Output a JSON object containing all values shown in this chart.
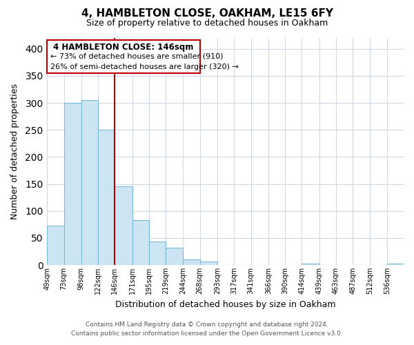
{
  "title": "4, HAMBLETON CLOSE, OAKHAM, LE15 6FY",
  "subtitle": "Size of property relative to detached houses in Oakham",
  "xlabel": "Distribution of detached houses by size in Oakham",
  "ylabel": "Number of detached properties",
  "footer_line1": "Contains HM Land Registry data © Crown copyright and database right 2024.",
  "footer_line2": "Contains public sector information licensed under the Open Government Licence v3.0.",
  "annotation_title": "4 HAMBLETON CLOSE: 146sqm",
  "annotation_line2": "← 73% of detached houses are smaller (910)",
  "annotation_line3": "26% of semi-detached houses are larger (320) →",
  "bar_color": "#cce5f3",
  "bar_edge_color": "#7ab8d9",
  "marker_line_color": "#bb0000",
  "marker_value": 146,
  "xlabels": [
    "49sqm",
    "73sqm",
    "98sqm",
    "122sqm",
    "146sqm",
    "171sqm",
    "195sqm",
    "219sqm",
    "244sqm",
    "268sqm",
    "293sqm",
    "317sqm",
    "341sqm",
    "366sqm",
    "390sqm",
    "414sqm",
    "439sqm",
    "463sqm",
    "487sqm",
    "512sqm",
    "536sqm"
  ],
  "bin_edges": [
    49,
    73,
    98,
    122,
    146,
    171,
    195,
    219,
    244,
    268,
    293,
    317,
    341,
    366,
    390,
    414,
    439,
    463,
    487,
    512,
    536,
    560
  ],
  "bar_heights": [
    73,
    300,
    305,
    250,
    145,
    83,
    44,
    32,
    10,
    6,
    0,
    0,
    0,
    0,
    0,
    2,
    0,
    0,
    0,
    0,
    2
  ],
  "ylim": [
    0,
    420
  ],
  "yticks": [
    0,
    50,
    100,
    150,
    200,
    250,
    300,
    350,
    400
  ],
  "background_color": "#ffffff",
  "grid_color": "#d0d8e8"
}
